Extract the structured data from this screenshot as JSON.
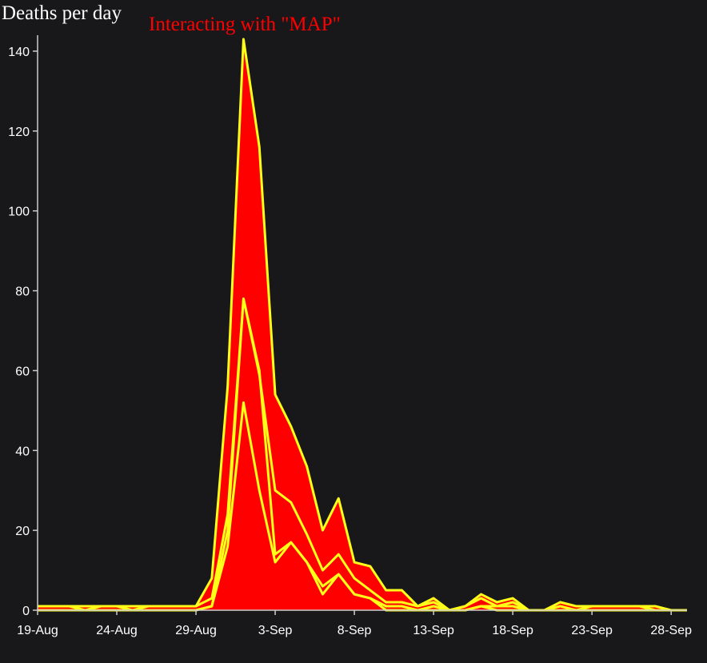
{
  "chart_data": {
    "type": "area",
    "title": "Deaths per day",
    "subtitle": "Interacting with \"MAP\"",
    "xlabel": "",
    "ylabel": "",
    "ylim": [
      0,
      144
    ],
    "yticks": [
      0,
      20,
      40,
      60,
      80,
      100,
      120,
      140
    ],
    "x_ticks": [
      "19-Aug",
      "24-Aug",
      "29-Aug",
      "3-Sep",
      "8-Sep",
      "13-Sep",
      "18-Sep",
      "23-Sep",
      "28-Sep"
    ],
    "x": [
      "19-Aug",
      "20-Aug",
      "21-Aug",
      "22-Aug",
      "23-Aug",
      "24-Aug",
      "25-Aug",
      "26-Aug",
      "27-Aug",
      "28-Aug",
      "29-Aug",
      "30-Aug",
      "31-Aug",
      "1-Sep",
      "2-Sep",
      "3-Sep",
      "4-Sep",
      "5-Sep",
      "6-Sep",
      "7-Sep",
      "8-Sep",
      "9-Sep",
      "10-Sep",
      "11-Sep",
      "12-Sep",
      "13-Sep",
      "14-Sep",
      "15-Sep",
      "16-Sep",
      "17-Sep",
      "18-Sep",
      "19-Sep",
      "20-Sep",
      "21-Sep",
      "22-Sep",
      "23-Sep",
      "24-Sep",
      "25-Sep",
      "26-Sep",
      "27-Sep",
      "28-Sep",
      "29-Sep"
    ],
    "series_cumulative": [
      [
        0,
        0,
        0,
        0,
        0,
        0,
        0,
        0,
        0,
        0,
        0,
        1,
        16,
        52,
        30,
        12,
        17,
        12,
        4,
        9,
        4,
        3,
        0,
        0,
        0,
        0,
        0,
        0,
        1,
        0,
        0,
        0,
        0,
        0,
        0,
        0,
        0,
        0,
        0,
        0,
        0,
        0
      ],
      [
        0,
        0,
        0,
        0,
        0,
        0,
        0,
        0,
        0,
        0,
        0,
        1,
        20,
        78,
        60,
        14,
        17,
        12,
        6,
        9,
        4,
        3,
        1,
        1,
        0,
        1,
        0,
        0,
        1,
        1,
        1,
        0,
        0,
        0,
        0,
        0,
        0,
        0,
        0,
        0,
        0,
        0
      ],
      [
        1,
        1,
        1,
        0,
        1,
        1,
        0,
        1,
        1,
        1,
        1,
        3,
        24,
        78,
        59,
        30,
        27,
        19,
        10,
        14,
        8,
        5,
        2,
        2,
        1,
        2,
        0,
        1,
        3,
        1,
        2,
        0,
        0,
        1,
        0,
        1,
        1,
        1,
        1,
        0,
        0,
        0
      ],
      [
        1,
        1,
        1,
        1,
        1,
        1,
        1,
        1,
        1,
        1,
        1,
        8,
        56,
        143,
        116,
        54,
        46,
        36,
        20,
        28,
        12,
        11,
        5,
        5,
        1,
        3,
        0,
        1,
        4,
        2,
        3,
        0,
        0,
        2,
        1,
        1,
        1,
        1,
        1,
        1,
        0,
        0
      ]
    ],
    "colors": {
      "fill": "#ff0000",
      "stroke": "#ffff1a",
      "axis": "#ffffff",
      "background": "#18181b"
    },
    "grid": false,
    "legend": "none"
  }
}
